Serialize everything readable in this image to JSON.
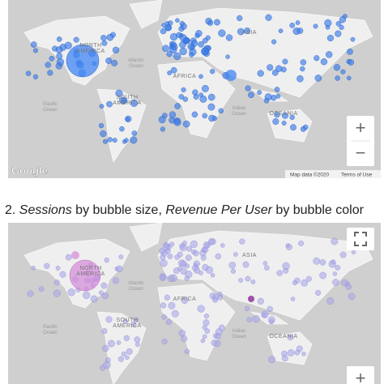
{
  "caption": {
    "parts": [
      "2. ",
      "Sessions",
      " by bubble size, ",
      "Revenue Per User",
      " by bubble color"
    ]
  },
  "panels": [
    {
      "labels": [
        {
          "lines": [
            "ASIA"
          ]
        },
        {
          "lines": [
            "NORTH",
            "AMERICA"
          ]
        },
        {
          "lines": [
            "Atlantic",
            "Ocean"
          ]
        },
        {
          "lines": [
            "AFRICA"
          ]
        },
        {
          "lines": [
            "SOUTH",
            "AMERICA"
          ]
        },
        {
          "lines": [
            "Pacific",
            "Ocean"
          ]
        },
        {
          "lines": [
            "Indian",
            "Ocean"
          ]
        },
        {
          "lines": [
            "OCEANIA"
          ]
        }
      ],
      "logo": "Google",
      "attribution": "Map data ©2020",
      "terms": "Terms of Use",
      "zoom_in": "+",
      "zoom_out": "−"
    },
    {
      "labels": [
        {
          "lines": [
            "ASIA"
          ]
        },
        {
          "lines": [
            "NORTH",
            "AMERICA"
          ]
        },
        {
          "lines": [
            "Atlantic",
            "Ocean"
          ]
        },
        {
          "lines": [
            "AFRICA"
          ]
        },
        {
          "lines": [
            "SOUTH",
            "AMERICA"
          ]
        },
        {
          "lines": [
            "Pacific",
            "Ocean"
          ]
        },
        {
          "lines": [
            "Indian",
            "Ocean"
          ]
        },
        {
          "lines": [
            "OCEANIA"
          ]
        }
      ],
      "zoom_in": "+"
    }
  ]
}
